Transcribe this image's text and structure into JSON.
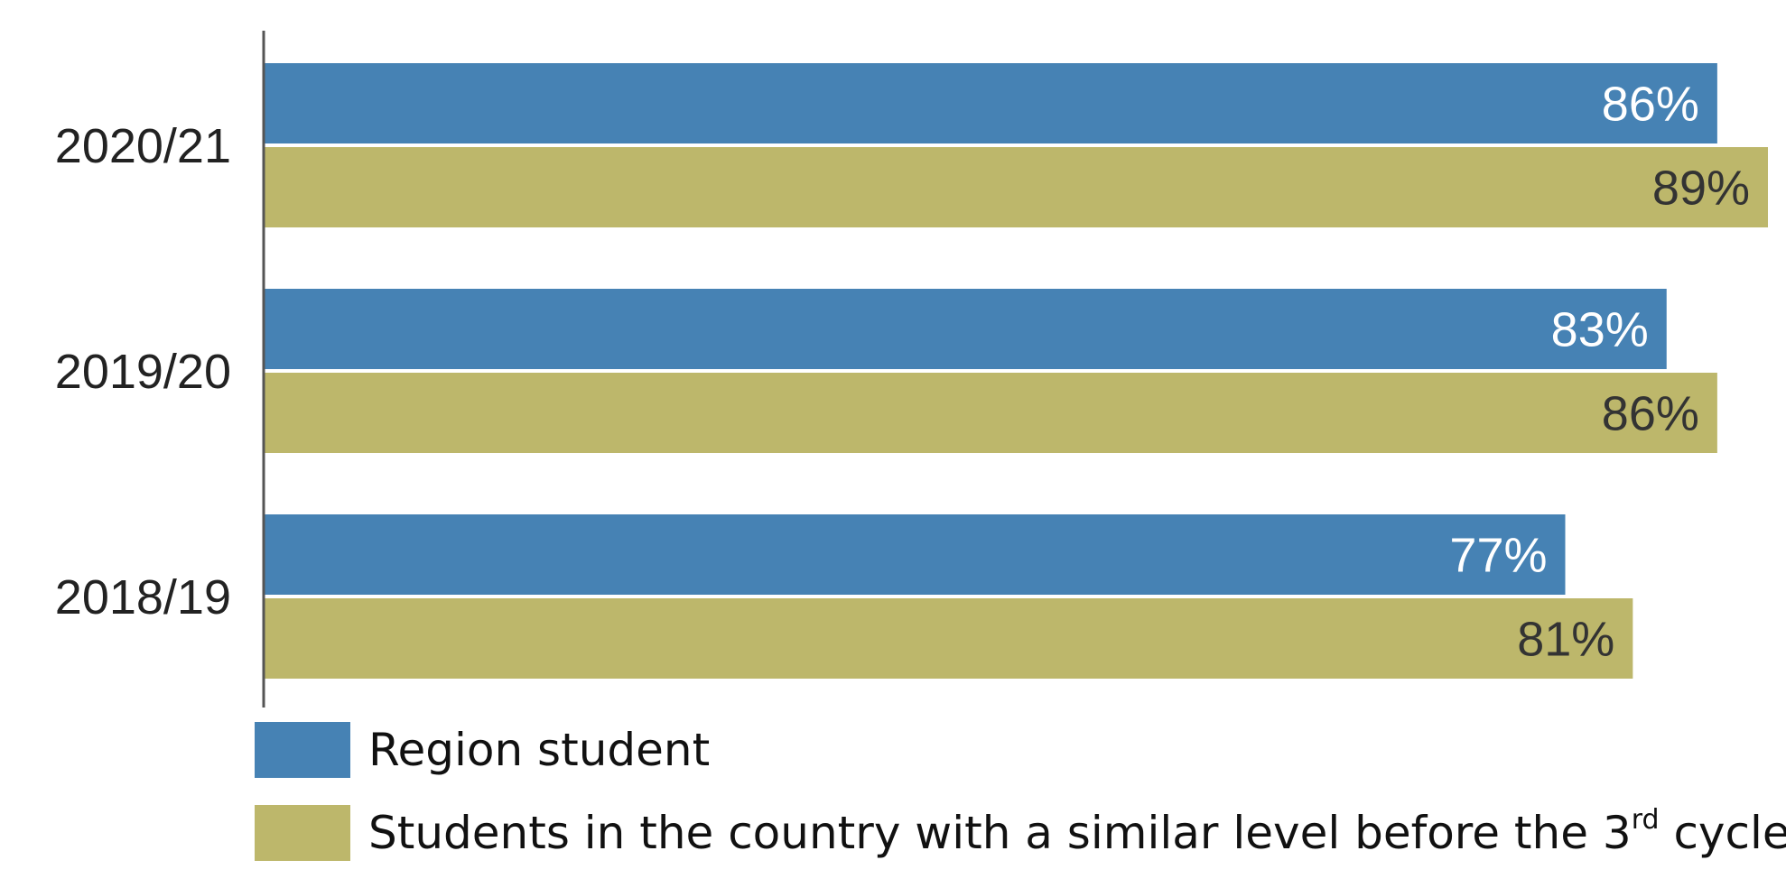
{
  "chart_data": {
    "type": "bar",
    "orientation": "horizontal",
    "categories": [
      "2020/21",
      "2019/20",
      "2018/19"
    ],
    "series": [
      {
        "name": "Region student",
        "values": [
          86,
          83,
          77
        ],
        "labels": [
          "86%",
          "83%",
          "77%"
        ],
        "color": "#4682B4",
        "label_color": "#ffffff"
      },
      {
        "name": "Students in the country with a similar level before the 3rd cycle",
        "values": [
          89,
          86,
          81
        ],
        "labels": [
          "89%",
          "86%",
          "81%"
        ],
        "color": "#BDB76B",
        "label_color": "#333333"
      }
    ],
    "xlim": [
      0,
      89
    ],
    "grid": false,
    "legend_position": "bottom-left"
  },
  "legend": {
    "items": [
      {
        "text": "Region student",
        "color": "#4682B4"
      },
      {
        "text_before": "Students in the country with a similar level before the 3",
        "superscript": "rd",
        "text_after": " cycle",
        "color": "#BDB76B"
      }
    ]
  }
}
